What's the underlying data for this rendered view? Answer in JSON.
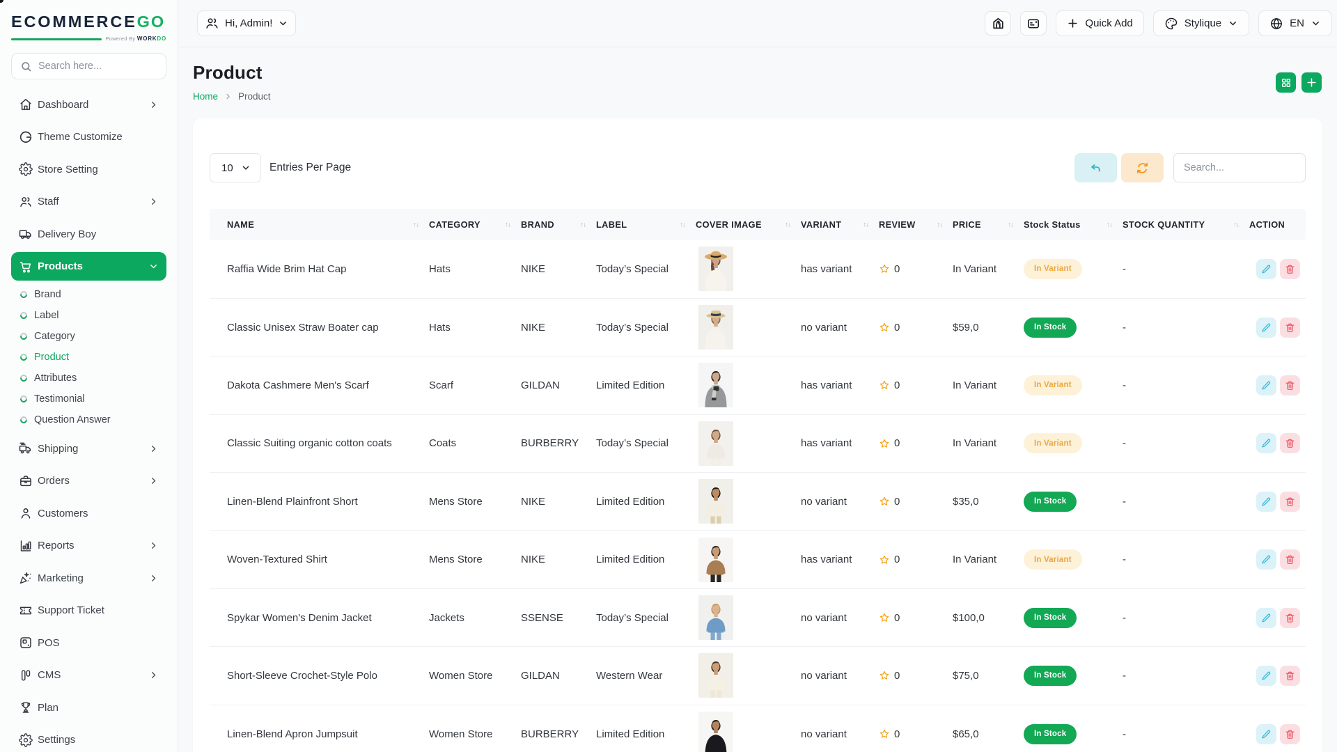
{
  "brand": {
    "name_primary": "ECOMMERCE",
    "name_accent": "GO",
    "powered_by": "Powered By",
    "powered_brand_primary": "WORK",
    "powered_brand_accent": "DO",
    "accent_color": "#0ca85f"
  },
  "sidebar": {
    "search_placeholder": "Search here...",
    "items": [
      {
        "label": "Dashboard",
        "icon": "home",
        "chevron": "right"
      },
      {
        "label": "Theme Customize",
        "icon": "theme"
      },
      {
        "label": "Store Setting",
        "icon": "store-setting"
      },
      {
        "label": "Staff",
        "icon": "users",
        "chevron": "right"
      },
      {
        "label": "Delivery Boy",
        "icon": "truck"
      },
      {
        "label": "Products",
        "icon": "cart",
        "chevron": "down",
        "active": true,
        "children": [
          "Brand",
          "Label",
          "Category",
          "Product",
          "Attributes",
          "Testimonial",
          "Question Answer"
        ],
        "active_child": "Product"
      },
      {
        "label": "Shipping",
        "icon": "shipping",
        "chevron": "right"
      },
      {
        "label": "Orders",
        "icon": "orders",
        "chevron": "right"
      },
      {
        "label": "Customers",
        "icon": "customer"
      },
      {
        "label": "Reports",
        "icon": "reports",
        "chevron": "right"
      },
      {
        "label": "Marketing",
        "icon": "marketing",
        "chevron": "right"
      },
      {
        "label": "Support Ticket",
        "icon": "ticket"
      },
      {
        "label": "POS",
        "icon": "pos"
      },
      {
        "label": "CMS",
        "icon": "cms",
        "chevron": "right"
      },
      {
        "label": "Plan",
        "icon": "plan"
      },
      {
        "label": "Settings",
        "icon": "settings"
      }
    ]
  },
  "topbar": {
    "greeting": "Hi, Admin!",
    "quick_add_label": "Quick Add",
    "theme_label": "Stylique",
    "language_label": "EN"
  },
  "page": {
    "title": "Product",
    "breadcrumb_home": "Home",
    "breadcrumb_current": "Product"
  },
  "toolbar": {
    "entries_value": "10",
    "entries_label": "Entries Per Page",
    "search_placeholder": "Search..."
  },
  "table": {
    "columns": [
      {
        "label": "NAME",
        "sortable": true
      },
      {
        "label": "CATEGORY",
        "sortable": true
      },
      {
        "label": "BRAND",
        "sortable": true
      },
      {
        "label": "LABEL",
        "sortable": true
      },
      {
        "label": "COVER IMAGE",
        "sortable": true
      },
      {
        "label": "VARIANT",
        "sortable": true
      },
      {
        "label": "REVIEW",
        "sortable": true
      },
      {
        "label": "PRICE",
        "sortable": true
      },
      {
        "label": "Stock Status",
        "sortable": true
      },
      {
        "label": "STOCK QUANTITY",
        "sortable": true
      },
      {
        "label": "ACTION",
        "sortable": false
      }
    ],
    "rows": [
      {
        "name": "Raffia Wide Brim Hat Cap",
        "category": "Hats",
        "brand": "NIKE",
        "label": "Today’s Special",
        "image": {
          "alt": "woman wearing wide brim straw hat",
          "bg": "#f2f0ed",
          "skin": "#cda387",
          "hair": "#6b4c35",
          "top": "#f7f4ed",
          "hat": "wide",
          "hat_color": "#d9aa6e",
          "band": "#23211f"
        },
        "variant": "has variant",
        "review_count": "0",
        "price": "In Variant",
        "stock_status": {
          "text": "In Variant",
          "type": "variant"
        },
        "stock_quantity": "-"
      },
      {
        "name": "Classic Unisex Straw Boater cap",
        "category": "Hats",
        "brand": "NIKE",
        "label": "Today’s Special",
        "image": {
          "alt": "man wearing straw boater hat",
          "bg": "#f0efec",
          "skin": "#d4ac8b",
          "hair": "#8a6b4c",
          "top": "#f5f3ec",
          "hat": "boater",
          "hat_color": "#dcc38d",
          "band": "#33405c"
        },
        "variant": "no variant",
        "review_count": "0",
        "price": "$59,0",
        "stock_status": {
          "text": "In Stock",
          "type": "stock"
        },
        "stock_quantity": "-"
      },
      {
        "name": "Dakota Cashmere Men's Scarf",
        "category": "Scarf",
        "brand": "GILDAN",
        "label": "Limited Edition",
        "image": {
          "alt": "man wearing cashmere scarf",
          "bg": "#f5f5f5",
          "skin": "#cba88b",
          "hair": "#2e241c",
          "top": "#96989b",
          "scarf": "#31322f",
          "scarf2": "#cdd0ca"
        },
        "variant": "has variant",
        "review_count": "0",
        "price": "In Variant",
        "stock_status": {
          "text": "In Variant",
          "type": "variant"
        },
        "stock_quantity": "-"
      },
      {
        "name": "Classic Suiting organic cotton coats",
        "category": "Coats",
        "brand": "BURBERRY",
        "label": "Today’s Special",
        "image": {
          "alt": "woman wearing organic cotton coat",
          "bg": "#f3f1ee",
          "skin": "#cfa98a",
          "hair": "#6e5036",
          "top": "#eeebe2",
          "legs": true,
          "bottom": "#f2efe7"
        },
        "variant": "has variant",
        "review_count": "0",
        "price": "In Variant",
        "stock_status": {
          "text": "In Variant",
          "type": "variant"
        },
        "stock_quantity": "-"
      },
      {
        "name": "Linen-Blend Plainfront Short",
        "category": "Mens Store",
        "brand": "NIKE",
        "label": "Limited Edition",
        "image": {
          "alt": "man wearing linen-blend shorts",
          "bg": "#f1efe9",
          "skin": "#bb8c64",
          "hair": "#201a14",
          "top": "#f2eee1",
          "legs": true,
          "bottom": "#ddcfae"
        },
        "variant": "no variant",
        "review_count": "0",
        "price": "$35,0",
        "stock_status": {
          "text": "In Stock",
          "type": "stock"
        },
        "stock_quantity": "-"
      },
      {
        "name": "Woven-Textured Shirt",
        "category": "Mens Store",
        "brand": "NIKE",
        "label": "Limited Edition",
        "image": {
          "alt": "man wearing woven-textured shirt",
          "bg": "#f6f5f3",
          "skin": "#c59c77",
          "hair": "#31271d",
          "top": "#a87e52",
          "legs": true,
          "bottom": "#2c2722"
        },
        "variant": "has variant",
        "review_count": "0",
        "price": "In Variant",
        "stock_status": {
          "text": "In Variant",
          "type": "variant"
        },
        "stock_quantity": "-"
      },
      {
        "name": "Spykar Women's Denim Jacket",
        "category": "Jackets",
        "brand": "SSENSE",
        "label": "Today’s Special",
        "image": {
          "alt": "woman wearing denim jacket",
          "bg": "#f0f0ee",
          "skin": "#dab48e",
          "hair": "#c79a60",
          "top": "#6f9cc6",
          "legs": true,
          "bottom": "#82a9cb"
        },
        "variant": "no variant",
        "review_count": "0",
        "price": "$100,0",
        "stock_status": {
          "text": "In Stock",
          "type": "stock"
        },
        "stock_quantity": "-"
      },
      {
        "name": "Short-Sleeve Crochet-Style Polo",
        "category": "Women Store",
        "brand": "GILDAN",
        "label": "Western Wear",
        "image": {
          "alt": "woman wearing crochet-style polo",
          "bg": "#f2efe8",
          "skin": "#c99d78",
          "hair": "#4b3627",
          "top": "#f4f0e4",
          "legs": true,
          "bottom": "#efe8d6"
        },
        "variant": "no variant",
        "review_count": "0",
        "price": "$75,0",
        "stock_status": {
          "text": "In Stock",
          "type": "stock"
        },
        "stock_quantity": "-"
      },
      {
        "name": "Linen-Blend Apron Jumpsuit",
        "category": "Women Store",
        "brand": "BURBERRY",
        "label": "Limited Edition",
        "image": {
          "alt": "woman wearing black apron jumpsuit",
          "bg": "#f6f6f4",
          "skin": "#b2835f",
          "hair": "#251d16",
          "top": "#1a191d",
          "legs": false
        },
        "variant": "no variant",
        "review_count": "0",
        "price": "$65,0",
        "stock_status": {
          "text": "In Stock",
          "type": "stock"
        },
        "stock_quantity": "-"
      }
    ]
  }
}
